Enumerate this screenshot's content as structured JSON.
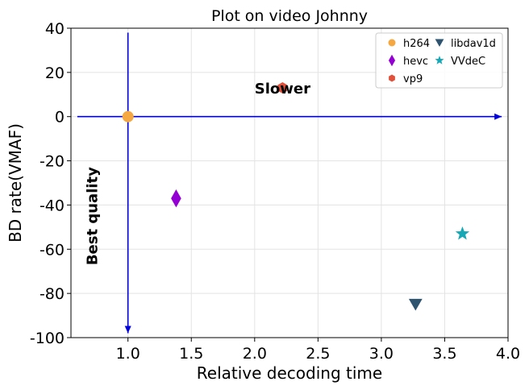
{
  "chart_data": {
    "type": "scatter",
    "title": "Plot on video Johnny",
    "xlabel": "Relative decoding time",
    "ylabel": "BD rate(VMAF)",
    "xlim": [
      0.55,
      4.0
    ],
    "ylim": [
      -100,
      40
    ],
    "xticks": [
      "1.0",
      "1.5",
      "2.0",
      "2.5",
      "3.0",
      "3.5",
      "4.0"
    ],
    "yticks": [
      "40",
      "20",
      "0",
      "-20",
      "-40",
      "-60",
      "-80",
      "-100"
    ],
    "grid": true,
    "legend_position": "top-right",
    "series": [
      {
        "name": "h264",
        "x": 1.0,
        "y": 0,
        "marker": "circle",
        "color": "#f5a742"
      },
      {
        "name": "hevc",
        "x": 1.38,
        "y": -37,
        "marker": "diamond",
        "color": "#9400d3"
      },
      {
        "name": "vp9",
        "x": 2.22,
        "y": 13,
        "marker": "hexagon",
        "color": "#e0503a"
      },
      {
        "name": "libdav1d",
        "x": 3.27,
        "y": -85,
        "marker": "triangle-down",
        "color": "#2e5470"
      },
      {
        "name": "VVdeC",
        "x": 3.64,
        "y": -53,
        "marker": "star",
        "color": "#17a8b5"
      }
    ],
    "annotations": [
      {
        "text": "Slower",
        "x": 2.0,
        "y": 13,
        "rotation": 0
      },
      {
        "text": "Best quality",
        "x": 0.72,
        "y": -45,
        "rotation": -90
      }
    ],
    "arrows": [
      {
        "name": "slower-arrow",
        "from": [
          0.6,
          0
        ],
        "to": [
          3.95,
          0
        ],
        "color": "#0000dd"
      },
      {
        "name": "quality-arrow",
        "from": [
          1.0,
          38
        ],
        "to": [
          1.0,
          -98
        ],
        "color": "#0000dd"
      }
    ]
  }
}
